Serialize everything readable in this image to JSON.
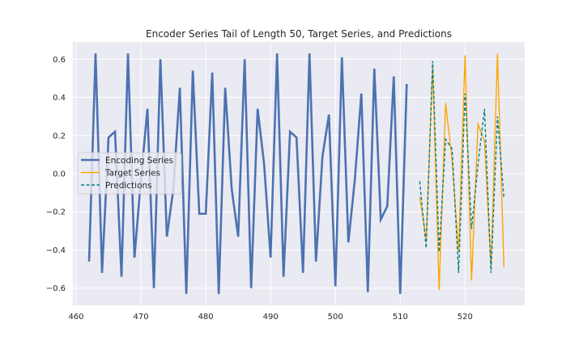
{
  "chart_data": {
    "type": "line",
    "title": "Encoder Series Tail of Length 50, Target Series, and Predictions",
    "xlabel": "",
    "ylabel": "",
    "xlim": [
      459.5,
      529.2
    ],
    "ylim": [
      -0.69,
      0.69
    ],
    "xticks": [
      460,
      470,
      480,
      490,
      500,
      510,
      520
    ],
    "yticks": [
      -0.6,
      -0.4,
      -0.2,
      0.0,
      0.2,
      0.4,
      0.6
    ],
    "xtick_labels": [
      "460",
      "470",
      "480",
      "490",
      "500",
      "510",
      "520"
    ],
    "ytick_labels": [
      "−0.6",
      "−0.4",
      "−0.2",
      "0.0",
      "0.2",
      "0.4",
      "0.6"
    ],
    "grid": true,
    "legend_position": "center-left",
    "colors": {
      "background": "#EAEAF2",
      "grid": "#FFFFFF",
      "encoding": "#4C72B0",
      "target": "#FFA500",
      "predictions": "#008080"
    },
    "series": [
      {
        "name": "Encoding Series",
        "style": "solid-thick",
        "x": [
          462,
          463,
          464,
          465,
          466,
          467,
          468,
          469,
          470,
          471,
          472,
          473,
          474,
          475,
          476,
          477,
          478,
          479,
          480,
          481,
          482,
          483,
          484,
          485,
          486,
          487,
          488,
          489,
          490,
          491,
          492,
          493,
          494,
          495,
          496,
          497,
          498,
          499,
          500,
          501,
          502,
          503,
          504,
          505,
          506,
          507,
          508,
          509,
          510,
          511
        ],
        "values": [
          -0.46,
          0.63,
          -0.52,
          0.19,
          0.22,
          -0.54,
          0.63,
          -0.44,
          -0.03,
          0.34,
          -0.6,
          0.6,
          -0.33,
          -0.08,
          0.45,
          -0.63,
          0.54,
          -0.21,
          -0.21,
          0.53,
          -0.63,
          0.45,
          -0.08,
          -0.33,
          0.6,
          -0.6,
          0.34,
          0.05,
          -0.44,
          0.63,
          -0.54,
          0.22,
          0.19,
          -0.52,
          0.63,
          -0.46,
          0.09,
          0.31,
          -0.59,
          0.61,
          -0.36,
          -0.03,
          0.42,
          -0.62,
          0.55,
          -0.24,
          -0.17,
          0.51,
          -0.63,
          0.47
        ]
      },
      {
        "name": "Target Series",
        "style": "solid-thin",
        "x": [
          513,
          514,
          515,
          516,
          517,
          518,
          519,
          520,
          521,
          522,
          523,
          524,
          525,
          526
        ],
        "values": [
          -0.12,
          -0.34,
          0.56,
          -0.61,
          0.37,
          0.07,
          -0.41,
          0.62,
          -0.56,
          0.26,
          0.17,
          -0.49,
          0.63,
          -0.49
        ]
      },
      {
        "name": "Predictions",
        "style": "dashed",
        "x": [
          513,
          514,
          515,
          516,
          517,
          518,
          519,
          520,
          521,
          522,
          523,
          524,
          525,
          526
        ],
        "values": [
          -0.04,
          -0.39,
          0.59,
          -0.41,
          0.18,
          0.13,
          -0.52,
          0.42,
          -0.29,
          0.05,
          0.34,
          -0.52,
          0.3,
          -0.13
        ]
      }
    ]
  }
}
